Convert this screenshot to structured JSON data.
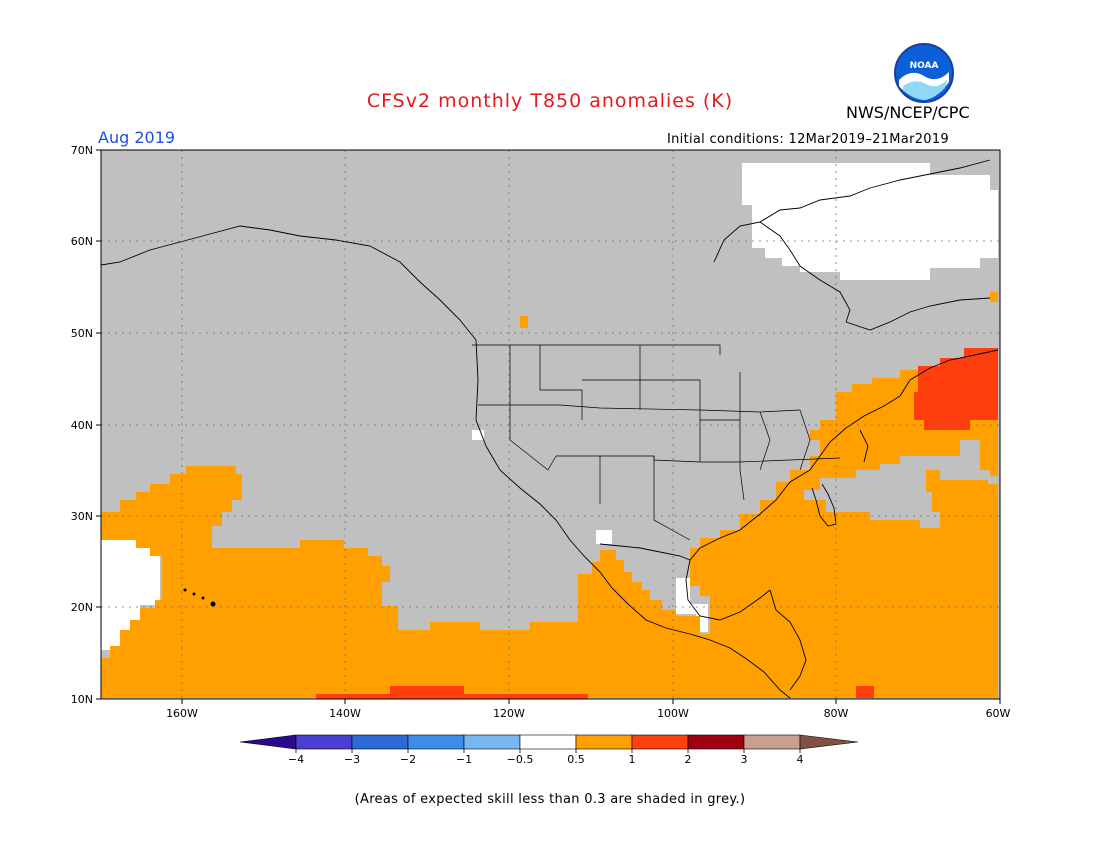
{
  "header": {
    "title": "CFSv2 monthly T850 anomalies (K)",
    "agency": "NWS/NCEP/CPC",
    "logo_text": "NOAA",
    "valid_month": "Aug 2019",
    "initial_conditions": "Initial conditions: 12Mar2019–21Mar2019"
  },
  "map": {
    "lat_labels": [
      "70N",
      "60N",
      "50N",
      "40N",
      "30N",
      "20N",
      "10N"
    ],
    "lon_labels": [
      "160W",
      "140W",
      "120W",
      "100W",
      "80W",
      "60W"
    ],
    "land_color": "#c0c0c0",
    "skill_mask_note": "grey"
  },
  "colorbar": {
    "tick_labels": [
      "−4",
      "−3",
      "−2",
      "−1",
      "−0.5",
      "0.5",
      "1",
      "2",
      "3",
      "4"
    ],
    "colors": [
      "#2a0a8a",
      "#4a3fd0",
      "#2c6ad8",
      "#3c8ce8",
      "#78b8f0",
      "#ffffff",
      "#ffa000",
      "#ff4010",
      "#a00010",
      "#c8a090",
      "#805040"
    ]
  },
  "footnote": "(Areas of expected skill less than 0.3 are shaded in grey.)"
}
